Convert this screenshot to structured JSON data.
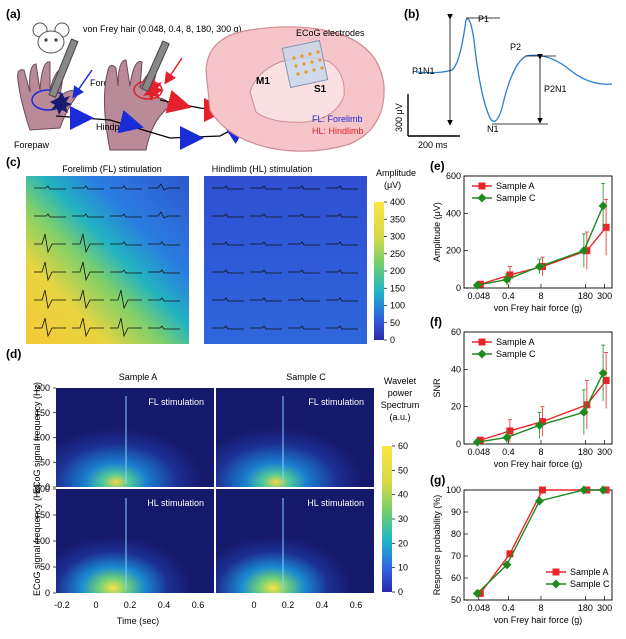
{
  "panel_a": {
    "letter": "(a)",
    "stimulus_label": "von Frey hair (0.048, 0.4, 8, 180, 300 g)",
    "force_label": "Force",
    "forepaw_label": "Forepaw",
    "hindpaw_label": "Hindpaw",
    "electrodes_label": "ECoG electrodes",
    "m1_label": "M1",
    "s1_label": "S1",
    "legend_fl": "FL: Forelimb",
    "legend_hl": "HL: Hindlimb"
  },
  "panel_b": {
    "letter": "(b)",
    "p1": "P1",
    "p2": "P2",
    "n1": "N1",
    "p1n1": "P1N1",
    "p2n1": "P2N1",
    "scale_v": "300 μV",
    "scale_t": "200 ms"
  },
  "panel_c": {
    "letter": "(c)",
    "title_left": "Forelimb (FL) stimulation",
    "title_right": "Hindlimb (HL) stimulation",
    "colorbar_title": "Amplitude",
    "colorbar_unit": "(μV)",
    "colorbar_ticks": [
      "400",
      "350",
      "300",
      "250",
      "200",
      "150",
      "100",
      "50",
      "0"
    ]
  },
  "panel_d": {
    "letter": "(d)",
    "col_left": "Sample A",
    "col_right": "Sample C",
    "tag_fl": "FL stimulation",
    "tag_hl": "HL stimulation",
    "ylabel": "ECoG signal frequency (Hz)",
    "xlabel": "Time (sec)",
    "yticks": [
      "200",
      "150",
      "100",
      "50",
      "0"
    ],
    "xticks_left": [
      "-0.2",
      "0",
      "0.2",
      "0.4",
      "0.6"
    ],
    "xticks_right": [
      "0",
      "0.2",
      "0.4",
      "0.6"
    ],
    "colorbar_title_1": "Wavelet",
    "colorbar_title_2": "power",
    "colorbar_title_3": "Spectrum",
    "colorbar_title_4": "(a.u.)",
    "colorbar_ticks": [
      "60",
      "50",
      "40",
      "30",
      "20",
      "10",
      "0"
    ]
  },
  "panel_e_letter": "(e)",
  "panel_f_letter": "(f)",
  "panel_g_letter": "(g)",
  "chart_data": [
    {
      "type": "line",
      "id": "e",
      "xlabel": "von Frey hair force (g)",
      "ylabel": "Amplitude (μV)",
      "x_ticks": [
        "0.048",
        "0.4",
        "8",
        "180",
        "300"
      ],
      "ylim": [
        0,
        600
      ],
      "y_ticks": [
        "0",
        "200",
        "400",
        "600"
      ],
      "legend_position": "top-left",
      "series": [
        {
          "name": "Sample A",
          "color": "#e8262a",
          "marker": "square",
          "values": [
            20,
            70,
            115,
            200,
            325
          ],
          "err": [
            15,
            45,
            50,
            100,
            150
          ]
        },
        {
          "name": "Sample C",
          "color": "#1e8a1e",
          "marker": "diamond",
          "values": [
            15,
            45,
            115,
            200,
            440
          ],
          "err": [
            10,
            30,
            40,
            90,
            120
          ]
        }
      ]
    },
    {
      "type": "line",
      "id": "f",
      "xlabel": "von Frey hair force (g)",
      "ylabel": "SNR",
      "x_ticks": [
        "0.048",
        "0.4",
        "8",
        "180",
        "300"
      ],
      "ylim": [
        0,
        60
      ],
      "y_ticks": [
        "0",
        "20",
        "40",
        "60"
      ],
      "legend_position": "top-left",
      "series": [
        {
          "name": "Sample A",
          "color": "#e8262a",
          "marker": "square",
          "values": [
            2,
            7,
            12,
            21,
            34
          ],
          "err": [
            1,
            6,
            8,
            13,
            15
          ]
        },
        {
          "name": "Sample C",
          "color": "#1e8a1e",
          "marker": "diamond",
          "values": [
            1,
            3.5,
            10,
            17,
            38
          ],
          "err": [
            1,
            3,
            7,
            12,
            15
          ]
        }
      ]
    },
    {
      "type": "line",
      "id": "g",
      "xlabel": "von Frey hair force (g)",
      "ylabel": "Response probability (%)",
      "x_ticks": [
        "0.048",
        "0.4",
        "8",
        "180",
        "300"
      ],
      "ylim": [
        50,
        100
      ],
      "y_ticks": [
        "50",
        "60",
        "70",
        "80",
        "90",
        "100"
      ],
      "legend_position": "bottom-right",
      "series": [
        {
          "name": "Sample A",
          "color": "#e8262a",
          "marker": "square",
          "values": [
            53,
            71,
            100,
            100,
            100
          ],
          "err": [
            0,
            0,
            0,
            0,
            0
          ]
        },
        {
          "name": "Sample C",
          "color": "#1e8a1e",
          "marker": "diamond",
          "values": [
            53,
            66,
            95,
            100,
            100
          ],
          "err": [
            0,
            0,
            0,
            0,
            0
          ]
        }
      ]
    }
  ]
}
